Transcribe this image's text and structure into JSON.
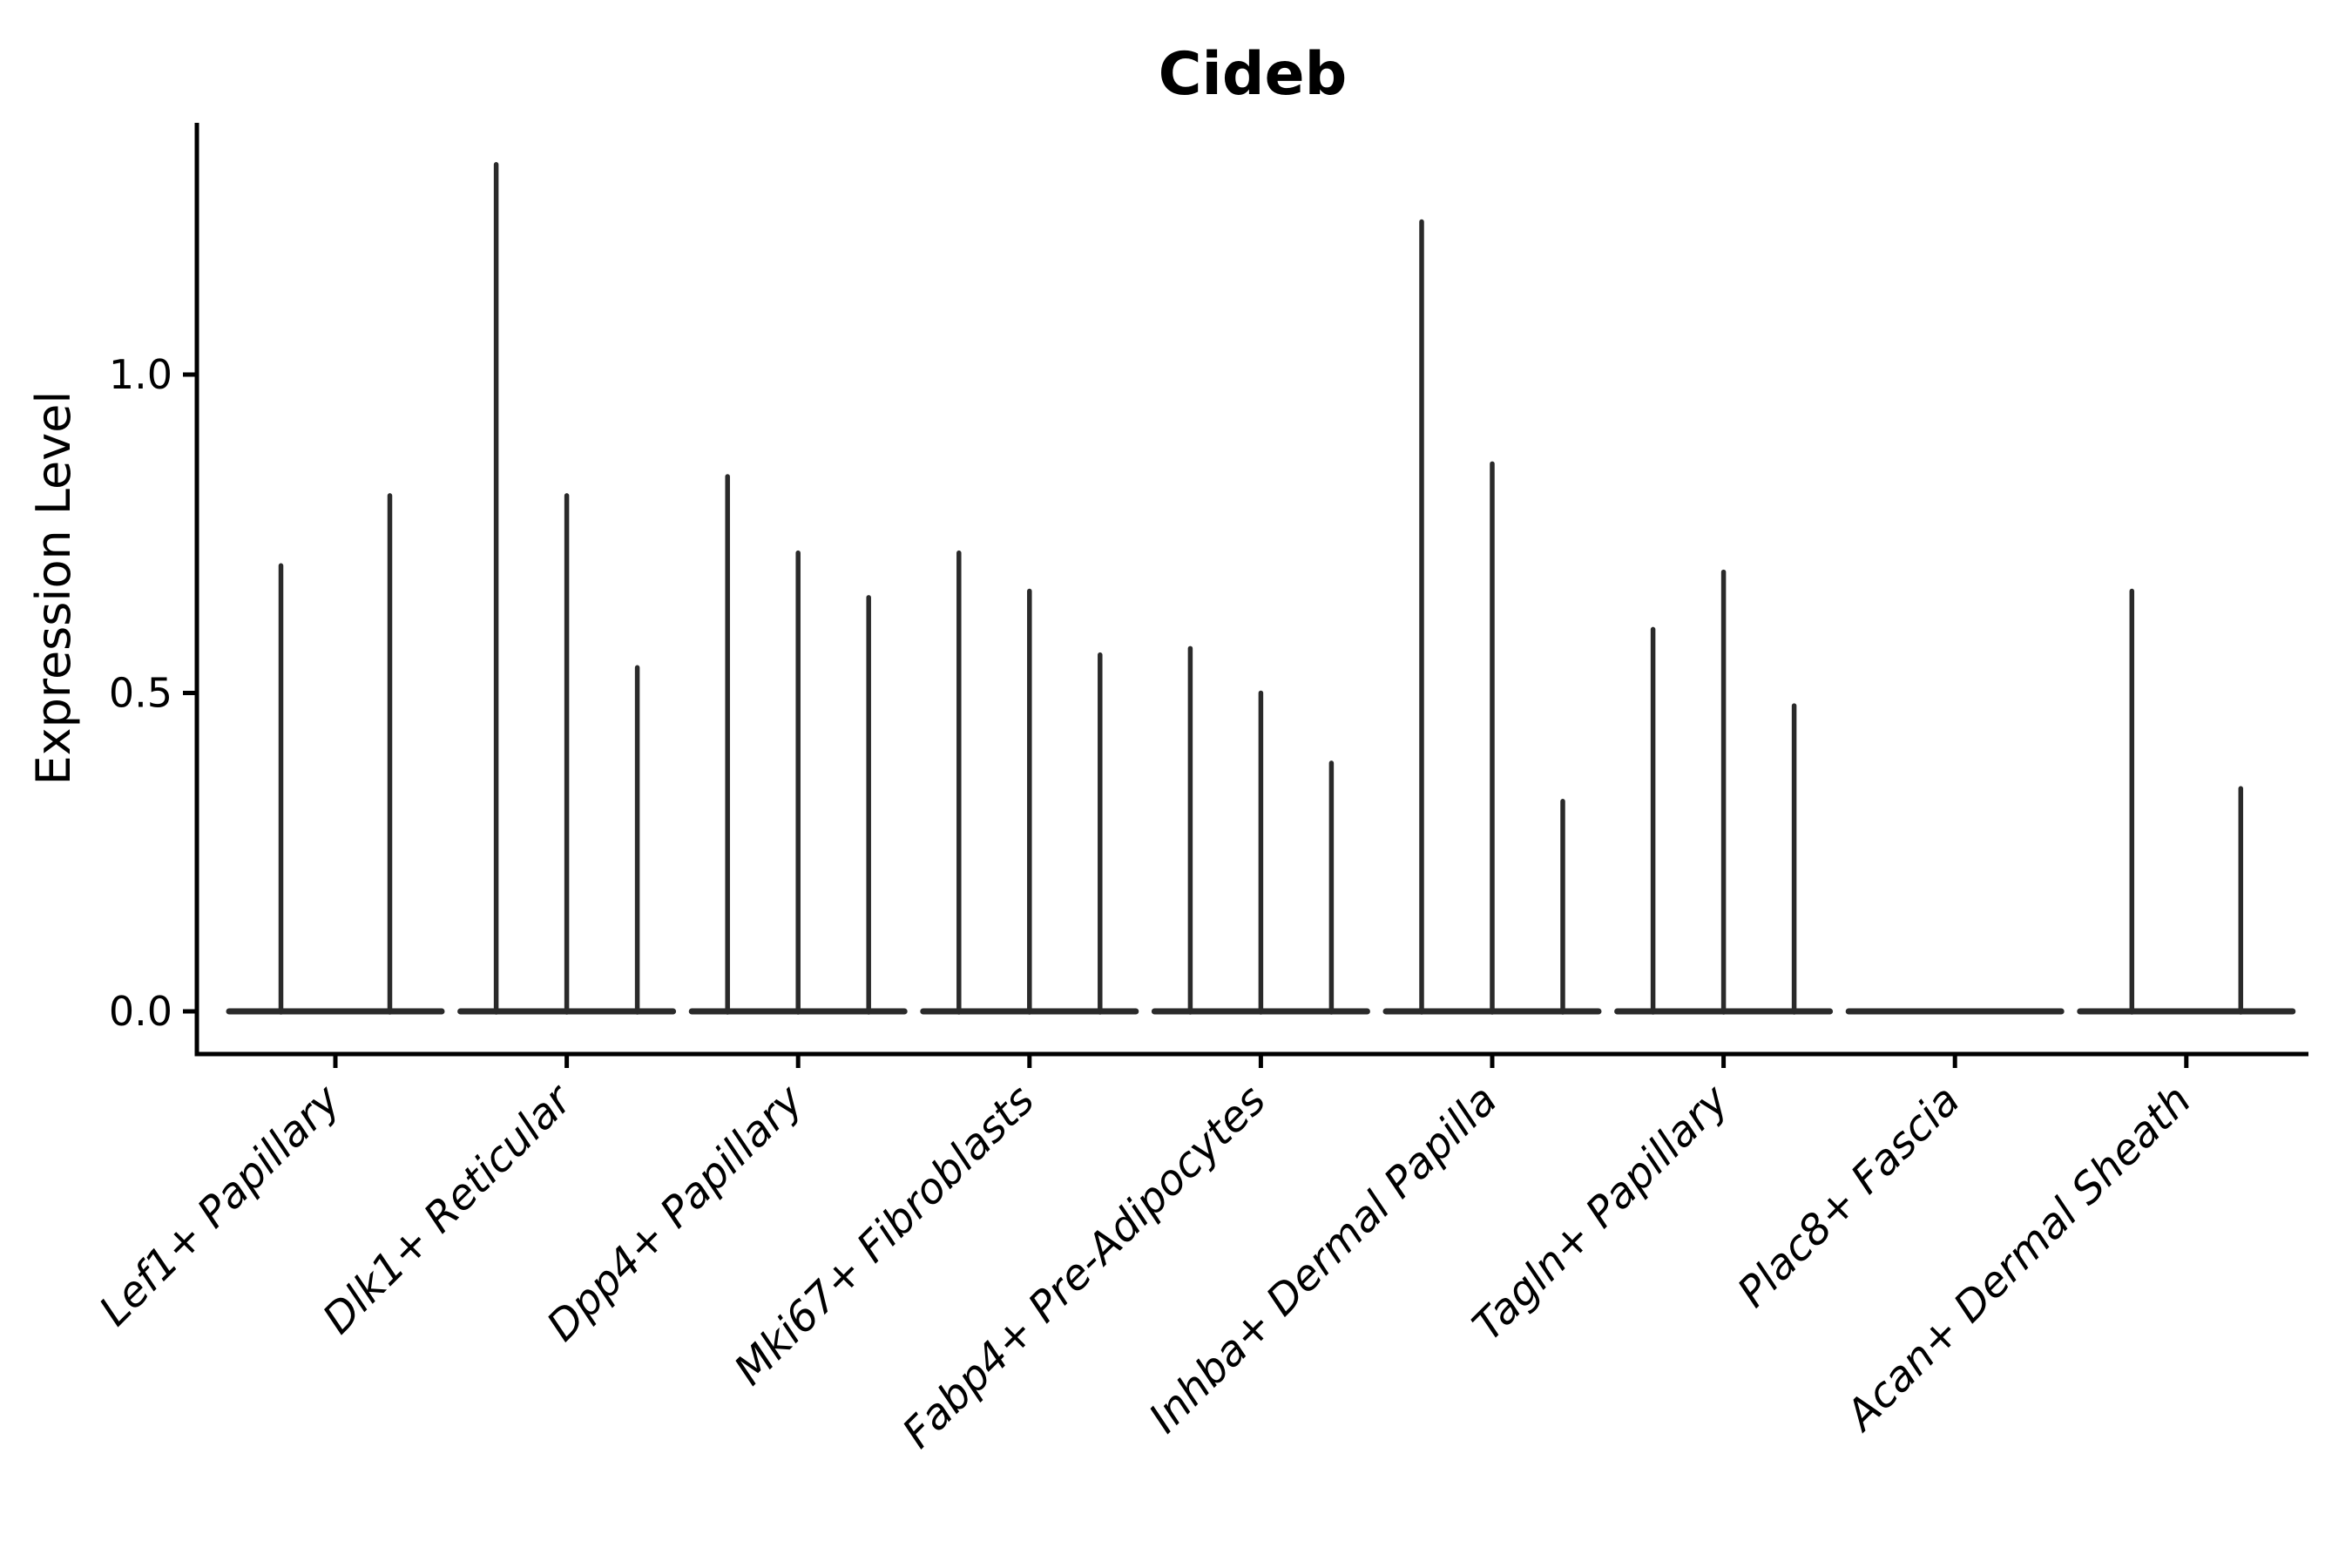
{
  "figure": {
    "title": "Cideb",
    "y_axis_label": "Expression Level"
  },
  "chart_data": {
    "type": "violin",
    "title": "Cideb",
    "xlabel": "",
    "ylabel": "Expression Level",
    "orientation": "vertical",
    "grid": false,
    "legend": false,
    "ylim": [
      -0.07,
      1.4
    ],
    "yticks": [
      0.0,
      0.5,
      1.0
    ],
    "ytick_labels": [
      "0.0",
      "0.5",
      "1.0"
    ],
    "categories": [
      "Lef1+ Papillary",
      "Dlk1+ Reticular",
      "Dpp4+ Papillary",
      "Mki67+ Fibroblasts",
      "Fabp4+ Pre-Adipocytes",
      "Inhba+ Dermal Papilla",
      "Tagln+ Papillary",
      "Plac8+ Fascia",
      "Acan+ Dermal Sheath"
    ],
    "groups": [
      {
        "category": "Lef1+ Papillary",
        "violin_peak_values": [
          0.7,
          0.81
        ]
      },
      {
        "category": "Dlk1+ Reticular",
        "violin_peak_values": [
          1.33,
          0.81,
          0.54
        ]
      },
      {
        "category": "Dpp4+ Papillary",
        "violin_peak_values": [
          0.84,
          0.72,
          0.65
        ]
      },
      {
        "category": "Mki67+ Fibroblasts",
        "violin_peak_values": [
          0.72,
          0.66,
          0.56
        ]
      },
      {
        "category": "Fabp4+ Pre-Adipocytes",
        "violin_peak_values": [
          0.57,
          0.5,
          0.39
        ]
      },
      {
        "category": "Inhba+ Dermal Papilla",
        "violin_peak_values": [
          1.24,
          0.86,
          0.33
        ]
      },
      {
        "category": "Tagln+ Papillary",
        "violin_peak_values": [
          0.6,
          0.69,
          0.48
        ]
      },
      {
        "category": "Plac8+ Fascia",
        "violin_peak_values": []
      },
      {
        "category": "Acan+ Dermal Sheath",
        "violin_peak_values": [
          0.66,
          0.35
        ]
      }
    ],
    "style_note": "Each violin is an extremely thin vertical spike rising from a wide flat base at expression level 0; spike top = peak expression level."
  },
  "colors": {
    "background": "#ffffff",
    "violin_stroke": "#2a2a2a",
    "axis": "#000000",
    "text": "#000000"
  }
}
